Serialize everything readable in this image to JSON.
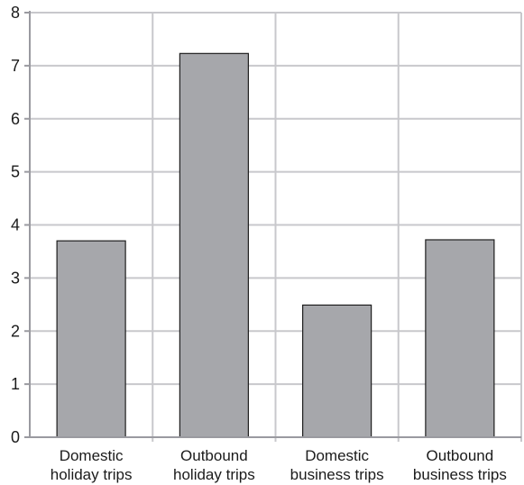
{
  "chart_data": {
    "type": "bar",
    "title": "",
    "xlabel": "",
    "ylabel": "",
    "categories": [
      [
        "Domestic",
        "holiday trips"
      ],
      [
        "Outbound",
        "holiday trips"
      ],
      [
        "Domestic",
        "business trips"
      ],
      [
        "Outbound",
        "business trips"
      ]
    ],
    "values": [
      3.7,
      7.23,
      2.49,
      3.72
    ],
    "ylim": [
      0,
      8
    ],
    "yticks": [
      "0",
      "1",
      "2",
      "3",
      "4",
      "5",
      "6",
      "7",
      "8"
    ],
    "grid": true,
    "legend": "none",
    "colors": {
      "bar_fill": "#a6a7ab",
      "bar_stroke": "#1e1e1e",
      "grid": "#c8c8cc",
      "axis": "#9a9aa0",
      "text": "#1b1b1b"
    }
  }
}
